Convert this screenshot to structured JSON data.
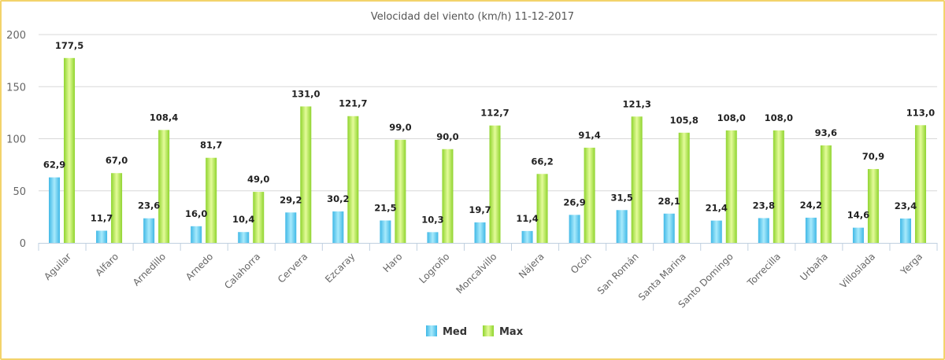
{
  "chart_data": {
    "type": "bar",
    "title": "Velocidad del viento (km/h) 11-12-2017",
    "xlabel": "",
    "ylabel": "",
    "ylim": [
      0,
      200
    ],
    "yticks": [
      0,
      50,
      100,
      150,
      200
    ],
    "grid": true,
    "legend_position": "bottom",
    "categories": [
      "Aguilar",
      "Alfaro",
      "Arnedillo",
      "Arnedo",
      "Calahorra",
      "Cervera",
      "Ezcaray",
      "Haro",
      "Logroño",
      "Moncalvillo",
      "Nájera",
      "Ocón",
      "San Román",
      "Santa Marina",
      "Santo Domingo",
      "Torrecilla",
      "Urbaña",
      "Villoslada",
      "Yerga"
    ],
    "series": [
      {
        "name": "Med",
        "color": "#5bcbee",
        "values": [
          62.9,
          11.7,
          23.6,
          16.0,
          10.4,
          29.2,
          30.2,
          21.5,
          10.3,
          19.7,
          11.4,
          26.9,
          31.5,
          28.1,
          21.4,
          23.8,
          24.2,
          14.6,
          23.4
        ]
      },
      {
        "name": "Max",
        "color": "#a6e04a",
        "values": [
          177.5,
          67.0,
          108.4,
          81.7,
          49.0,
          131.0,
          121.7,
          99.0,
          90.0,
          112.7,
          66.2,
          91.4,
          121.3,
          105.8,
          108.0,
          108.0,
          93.6,
          70.9,
          113.0
        ]
      }
    ]
  }
}
